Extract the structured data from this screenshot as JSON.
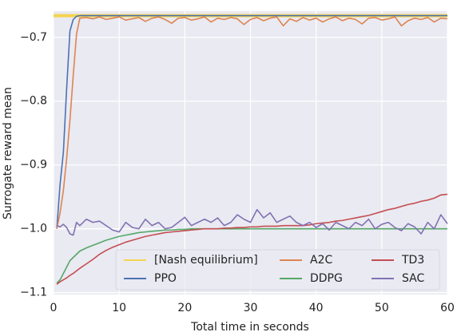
{
  "chart_data": {
    "type": "line",
    "xlabel": "Total time in seconds",
    "ylabel": "Surrogate reward mean",
    "x": [
      0.5,
      1,
      1.5,
      2,
      2.5,
      3,
      3.5,
      4,
      5,
      6,
      7,
      8,
      9,
      10,
      11,
      12,
      13,
      14,
      15,
      16,
      17,
      18,
      19,
      20,
      21,
      22,
      23,
      24,
      25,
      26,
      27,
      28,
      29,
      30,
      31,
      32,
      33,
      34,
      35,
      36,
      37,
      38,
      39,
      40,
      41,
      42,
      43,
      44,
      45,
      46,
      47,
      48,
      49,
      50,
      51,
      52,
      53,
      54,
      55,
      56,
      57,
      58,
      59,
      60
    ],
    "xlim": [
      0,
      60
    ],
    "xticks": [
      0,
      10,
      20,
      30,
      40,
      50,
      60
    ],
    "ylim": [
      -1.103,
      -0.659
    ],
    "yticks": [
      {
        "value": -1.1,
        "label": "−1.1"
      },
      {
        "value": -1.0,
        "label": "−1.0"
      },
      {
        "value": -0.9,
        "label": "−0.9"
      },
      {
        "value": -0.8,
        "label": "−0.8"
      },
      {
        "value": -0.7,
        "label": "−0.7"
      }
    ],
    "grid": true,
    "legend": "lower right",
    "legend_columns": 3,
    "series": [
      {
        "name": "[Nash equilibrium]",
        "color": "#f4d44f",
        "linewidth": 4,
        "x": [
          0,
          60
        ],
        "values": [
          -0.666,
          -0.666
        ]
      },
      {
        "name": "PPO",
        "color": "#4c72b0",
        "values": [
          -1.0,
          -0.93,
          -0.88,
          -0.78,
          -0.69,
          -0.672,
          -0.667,
          -0.666,
          -0.666,
          -0.666,
          -0.666,
          -0.666,
          -0.666,
          -0.666,
          -0.666,
          -0.666,
          -0.666,
          -0.666,
          -0.666,
          -0.666,
          -0.666,
          -0.666,
          -0.666,
          -0.666,
          -0.666,
          -0.666,
          -0.666,
          -0.666,
          -0.666,
          -0.666,
          -0.666,
          -0.666,
          -0.666,
          -0.666,
          -0.666,
          -0.666,
          -0.666,
          -0.666,
          -0.666,
          -0.666,
          -0.666,
          -0.666,
          -0.666,
          -0.666,
          -0.666,
          -0.666,
          -0.666,
          -0.666,
          -0.666,
          -0.666,
          -0.666,
          -0.666,
          -0.666,
          -0.666,
          -0.666,
          -0.666,
          -0.666,
          -0.666,
          -0.666,
          -0.666,
          -0.666,
          -0.666,
          -0.666,
          -0.666
        ]
      },
      {
        "name": "A2C",
        "color": "#dd8452",
        "values": [
          -1.0,
          -0.975,
          -0.94,
          -0.89,
          -0.83,
          -0.76,
          -0.695,
          -0.67,
          -0.669,
          -0.671,
          -0.668,
          -0.672,
          -0.67,
          -0.668,
          -0.673,
          -0.671,
          -0.669,
          -0.675,
          -0.67,
          -0.668,
          -0.672,
          -0.678,
          -0.67,
          -0.669,
          -0.673,
          -0.671,
          -0.668,
          -0.676,
          -0.67,
          -0.672,
          -0.669,
          -0.671,
          -0.68,
          -0.672,
          -0.669,
          -0.674,
          -0.67,
          -0.668,
          -0.682,
          -0.671,
          -0.675,
          -0.669,
          -0.673,
          -0.67,
          -0.676,
          -0.671,
          -0.668,
          -0.674,
          -0.67,
          -0.672,
          -0.679,
          -0.67,
          -0.669,
          -0.673,
          -0.671,
          -0.668,
          -0.682,
          -0.674,
          -0.67,
          -0.672,
          -0.669,
          -0.676,
          -0.67,
          -0.671
        ]
      },
      {
        "name": "DDPG",
        "color": "#55a868",
        "values": [
          -1.085,
          -1.08,
          -1.07,
          -1.06,
          -1.05,
          -1.045,
          -1.04,
          -1.035,
          -1.03,
          -1.026,
          -1.022,
          -1.018,
          -1.015,
          -1.012,
          -1.01,
          -1.008,
          -1.006,
          -1.005,
          -1.004,
          -1.003,
          -1.002,
          -1.002,
          -1.001,
          -1.001,
          -1.0,
          -1.0,
          -1.0,
          -1.0,
          -1.0,
          -1.0,
          -1.0,
          -1.0,
          -1.0,
          -1.0,
          -1.0,
          -1.0,
          -1.0,
          -1.0,
          -1.0,
          -1.0,
          -1.0,
          -1.0,
          -1.0,
          -1.0,
          -1.0,
          -1.0,
          -1.0,
          -1.0,
          -1.0,
          -1.0,
          -1.0,
          -1.0,
          -1.0,
          -1.0,
          -1.0,
          -1.0,
          -1.0,
          -1.0,
          -1.0,
          -1.0,
          -1.0,
          -1.0,
          -1.0,
          -1.0
        ]
      },
      {
        "name": "TD3",
        "color": "#c44e52",
        "values": [
          -1.087,
          -1.083,
          -1.08,
          -1.077,
          -1.073,
          -1.07,
          -1.066,
          -1.062,
          -1.055,
          -1.048,
          -1.04,
          -1.034,
          -1.029,
          -1.025,
          -1.021,
          -1.018,
          -1.015,
          -1.012,
          -1.01,
          -1.008,
          -1.006,
          -1.005,
          -1.004,
          -1.003,
          -1.002,
          -1.001,
          -1.0,
          -1.0,
          -1.0,
          -0.999,
          -0.999,
          -0.998,
          -0.998,
          -0.997,
          -0.997,
          -0.996,
          -0.996,
          -0.996,
          -0.995,
          -0.995,
          -0.995,
          -0.995,
          -0.994,
          -0.992,
          -0.991,
          -0.99,
          -0.988,
          -0.987,
          -0.985,
          -0.983,
          -0.981,
          -0.979,
          -0.976,
          -0.973,
          -0.97,
          -0.968,
          -0.965,
          -0.962,
          -0.96,
          -0.957,
          -0.955,
          -0.952,
          -0.947,
          -0.946
        ]
      },
      {
        "name": "SAC",
        "color": "#8172b3",
        "values": [
          -0.995,
          -0.997,
          -0.993,
          -0.998,
          -1.008,
          -1.01,
          -0.99,
          -0.995,
          -0.985,
          -0.99,
          -0.988,
          -0.995,
          -1.002,
          -1.005,
          -0.99,
          -0.998,
          -1.0,
          -0.985,
          -0.995,
          -0.99,
          -1.0,
          -0.998,
          -0.99,
          -0.982,
          -0.995,
          -0.99,
          -0.985,
          -0.99,
          -0.983,
          -0.995,
          -0.99,
          -0.978,
          -0.985,
          -0.99,
          -0.97,
          -0.983,
          -0.975,
          -0.99,
          -0.985,
          -0.98,
          -0.99,
          -0.995,
          -0.99,
          -0.998,
          -0.992,
          -1.002,
          -0.99,
          -0.995,
          -1.0,
          -0.99,
          -0.995,
          -0.985,
          -1.0,
          -0.993,
          -0.99,
          -0.998,
          -1.003,
          -0.992,
          -0.997,
          -1.008,
          -0.99,
          -1.0,
          -0.978,
          -0.992
        ]
      }
    ]
  }
}
